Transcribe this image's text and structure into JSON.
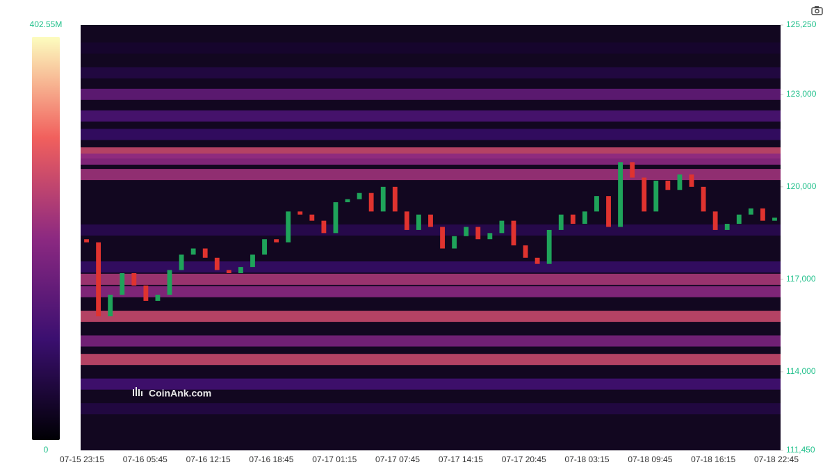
{
  "chart_data": {
    "type": "heatmap",
    "watermark": "CoinAnk.com",
    "colorbar": {
      "max": {
        "value": 402.55,
        "label": "402.55M"
      },
      "min": 0
    },
    "ylim": [
      111450,
      125250
    ],
    "yticks": [
      {
        "value": 125250,
        "label": "125,250"
      },
      {
        "value": 123000,
        "label": "123,000"
      },
      {
        "value": 120000,
        "label": "120,000"
      },
      {
        "value": 117000,
        "label": "117,000"
      },
      {
        "value": 114000,
        "label": "114,000"
      },
      {
        "value": 111450,
        "label": "111,450"
      }
    ],
    "xticks": [
      "07-15 23:15",
      "07-16 05:45",
      "07-16 12:15",
      "07-16 18:45",
      "07-17 01:15",
      "07-17 07:45",
      "07-17 14:15",
      "07-17 20:45",
      "07-18 03:15",
      "07-18 09:45",
      "07-18 16:15",
      "07-18 22:45"
    ],
    "levels": {
      "price": [
        124500,
        123700,
        123000,
        122300,
        121700,
        121100,
        120900,
        120400,
        118600,
        117400,
        117000,
        116600,
        115800,
        115000,
        114400,
        113600,
        112800
      ],
      "values": [
        40,
        60,
        150,
        120,
        90,
        260,
        200,
        220,
        70,
        90,
        230,
        200,
        260,
        180,
        260,
        110,
        60
      ]
    },
    "candles": {
      "up_color": "#1fa35a",
      "down_color": "#e0332f",
      "open": [
        118300,
        118200,
        115800,
        116500,
        117200,
        116800,
        116300,
        116500,
        117300,
        117800,
        118000,
        117700,
        117300,
        117200,
        117400,
        117800,
        118300,
        118200,
        119200,
        119100,
        118900,
        118500,
        119500,
        119600,
        119800,
        119200,
        120000,
        119200,
        118600,
        119100,
        118700,
        118000,
        118400,
        118700,
        118300,
        118500,
        118900,
        118100,
        117700,
        117500,
        118600,
        119100,
        118800,
        119200,
        119700,
        118700,
        120800,
        120300,
        119200,
        120200,
        119900,
        120400,
        120000,
        119200,
        118600,
        118800,
        119100,
        119300,
        118900
      ],
      "close": [
        118200,
        115800,
        116500,
        117200,
        116800,
        116300,
        116500,
        117300,
        117800,
        118000,
        117700,
        117300,
        117200,
        117400,
        117800,
        118300,
        118200,
        119200,
        119100,
        118900,
        118500,
        119500,
        119600,
        119800,
        119200,
        120000,
        119200,
        118600,
        119100,
        118700,
        118000,
        118400,
        118700,
        118300,
        118500,
        118900,
        118100,
        117700,
        117500,
        118600,
        119100,
        118800,
        119200,
        119700,
        118700,
        120800,
        120300,
        119200,
        120200,
        119900,
        120400,
        120000,
        119200,
        118600,
        118800,
        119100,
        119300,
        118900,
        119000
      ]
    }
  }
}
